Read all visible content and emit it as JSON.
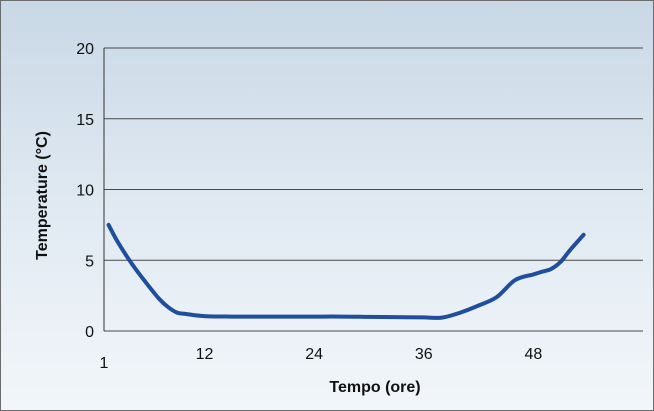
{
  "chart_data": {
    "type": "line",
    "title": "",
    "xlabel": "Tempo  (ore)",
    "ylabel": "Temperature (°C)",
    "xlim": [
      1,
      60
    ],
    "ylim": [
      0,
      20
    ],
    "x_ticks": [
      1,
      12,
      24,
      36,
      48
    ],
    "x_tick_labels": [
      "1",
      "12",
      "24",
      "36",
      "48"
    ],
    "y_ticks": [
      0,
      5,
      10,
      15,
      20
    ],
    "y_tick_labels": [
      "0",
      "5",
      "10",
      "15",
      "20"
    ],
    "grid": "horizontal",
    "legend": "none",
    "series_color": "#1f4e9c",
    "series": [
      {
        "x": [
          1.5,
          2.5,
          4,
          5.5,
          7,
          8,
          9,
          10,
          12,
          15,
          18,
          21,
          24,
          27,
          30,
          33,
          36,
          38,
          40,
          42,
          44,
          46,
          48,
          49,
          50,
          51,
          52,
          53.5
        ],
        "y": [
          7.5,
          6.3,
          4.8,
          3.5,
          2.3,
          1.7,
          1.3,
          1.2,
          1.05,
          1.02,
          1.02,
          1.02,
          1.02,
          1.02,
          1.0,
          0.98,
          0.96,
          0.95,
          1.3,
          1.8,
          2.4,
          3.6,
          4.0,
          4.2,
          4.4,
          4.9,
          5.7,
          6.8
        ]
      }
    ]
  }
}
